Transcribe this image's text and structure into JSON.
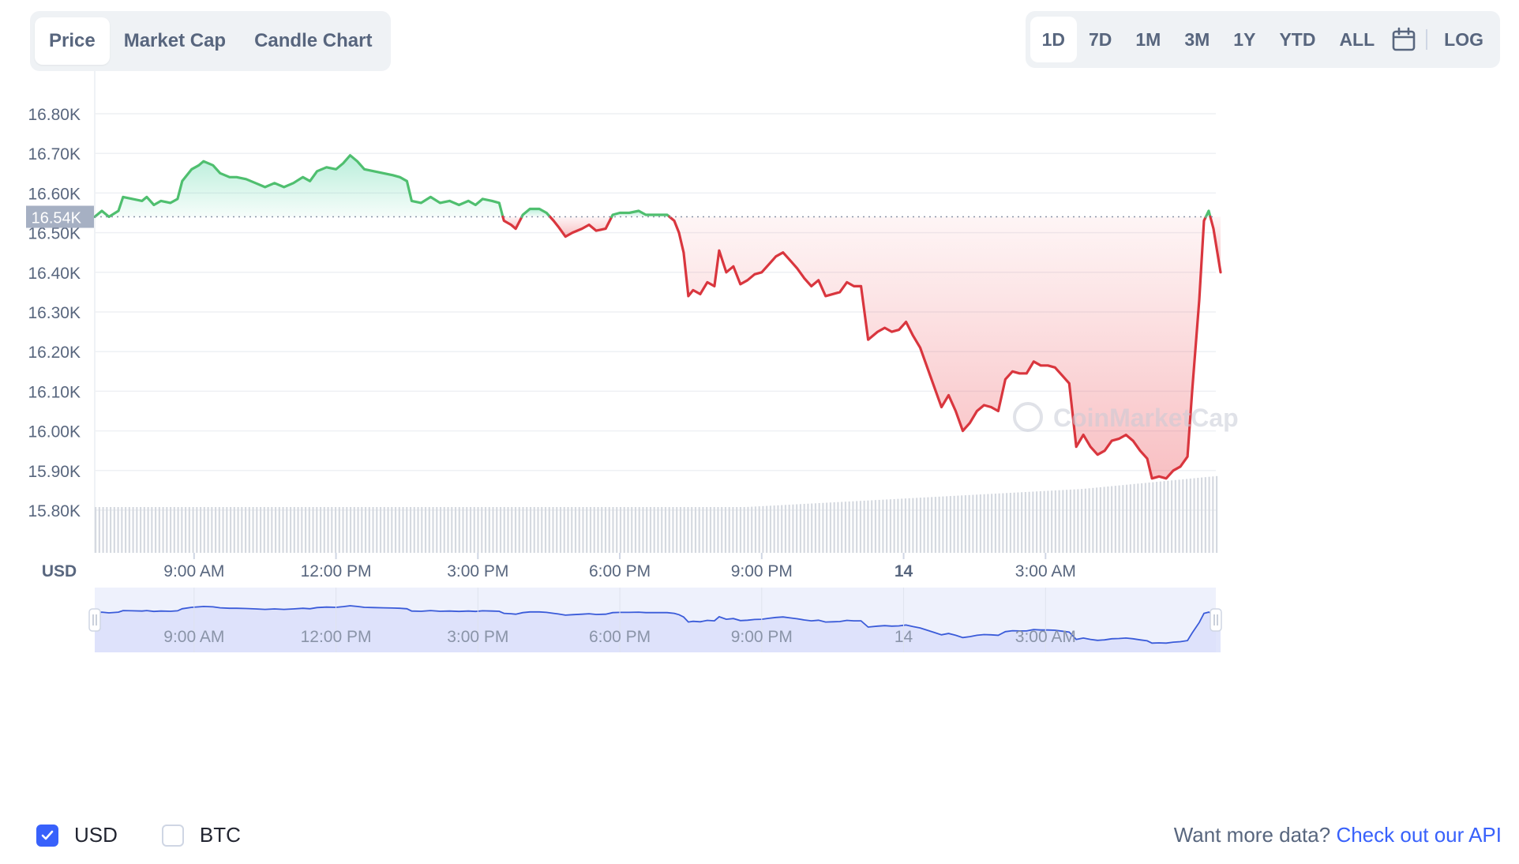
{
  "tabs": [
    {
      "label": "Price",
      "active": true
    },
    {
      "label": "Market Cap",
      "active": false
    },
    {
      "label": "Candle Chart",
      "active": false
    }
  ],
  "ranges": [
    {
      "label": "1D",
      "active": true
    },
    {
      "label": "7D",
      "active": false
    },
    {
      "label": "1M",
      "active": false
    },
    {
      "label": "3M",
      "active": false
    },
    {
      "label": "1Y",
      "active": false
    },
    {
      "label": "YTD",
      "active": false
    },
    {
      "label": "ALL",
      "active": false
    }
  ],
  "calendar_icon": "calendar-icon",
  "log_label": "LOG",
  "colors": {
    "up": "#16c784",
    "down": "#ea3943",
    "up_line": "#4fbf6f",
    "down_line": "#d9363e",
    "navigator": "#3a5bd9",
    "accent": "#3861fb"
  },
  "chart_data": {
    "type": "area",
    "currency_label": "USD",
    "reference_value": 16540,
    "reference_label": "16.54K",
    "ylim": [
      15800,
      16850
    ],
    "y_ticks": [
      {
        "value": 16800,
        "label": "16.80K"
      },
      {
        "value": 16700,
        "label": "16.70K"
      },
      {
        "value": 16600,
        "label": "16.60K"
      },
      {
        "value": 16500,
        "label": "16.50K"
      },
      {
        "value": 16400,
        "label": "16.40K"
      },
      {
        "value": 16300,
        "label": "16.30K"
      },
      {
        "value": 16200,
        "label": "16.20K"
      },
      {
        "value": 16100,
        "label": "16.10K"
      },
      {
        "value": 16000,
        "label": "16.00K"
      },
      {
        "value": 15900,
        "label": "15.90K"
      },
      {
        "value": 15800,
        "label": "15.80K"
      }
    ],
    "x_ticks": [
      {
        "hour": 9,
        "label": "9:00 AM",
        "bold": false
      },
      {
        "hour": 12,
        "label": "12:00 PM",
        "bold": false
      },
      {
        "hour": 15,
        "label": "3:00 PM",
        "bold": false
      },
      {
        "hour": 18,
        "label": "6:00 PM",
        "bold": false
      },
      {
        "hour": 21,
        "label": "9:00 PM",
        "bold": false
      },
      {
        "hour": 24,
        "label": "14",
        "bold": true
      },
      {
        "hour": 27,
        "label": "3:00 AM",
        "bold": false
      }
    ],
    "x_range_hours": [
      6.9,
      30.6
    ],
    "series": [
      {
        "points": [
          [
            6.9,
            16540
          ],
          [
            7.05,
            16555
          ],
          [
            7.2,
            16540
          ],
          [
            7.4,
            16555
          ],
          [
            7.5,
            16590
          ],
          [
            7.7,
            16585
          ],
          [
            7.9,
            16580
          ],
          [
            8.0,
            16590
          ],
          [
            8.15,
            16570
          ],
          [
            8.3,
            16580
          ],
          [
            8.5,
            16575
          ],
          [
            8.65,
            16585
          ],
          [
            8.75,
            16630
          ],
          [
            8.95,
            16660
          ],
          [
            9.1,
            16670
          ],
          [
            9.2,
            16680
          ],
          [
            9.4,
            16670
          ],
          [
            9.55,
            16650
          ],
          [
            9.75,
            16640
          ],
          [
            9.9,
            16640
          ],
          [
            10.1,
            16635
          ],
          [
            10.3,
            16625
          ],
          [
            10.5,
            16615
          ],
          [
            10.7,
            16625
          ],
          [
            10.9,
            16615
          ],
          [
            11.1,
            16625
          ],
          [
            11.3,
            16640
          ],
          [
            11.45,
            16630
          ],
          [
            11.6,
            16655
          ],
          [
            11.8,
            16665
          ],
          [
            12.0,
            16660
          ],
          [
            12.15,
            16675
          ],
          [
            12.3,
            16695
          ],
          [
            12.45,
            16680
          ],
          [
            12.6,
            16660
          ],
          [
            12.8,
            16655
          ],
          [
            13.0,
            16650
          ],
          [
            13.2,
            16645
          ],
          [
            13.35,
            16640
          ],
          [
            13.5,
            16630
          ],
          [
            13.6,
            16580
          ],
          [
            13.8,
            16575
          ],
          [
            14.0,
            16590
          ],
          [
            14.2,
            16575
          ],
          [
            14.4,
            16580
          ],
          [
            14.6,
            16570
          ],
          [
            14.8,
            16580
          ],
          [
            14.95,
            16570
          ],
          [
            15.1,
            16585
          ],
          [
            15.3,
            16580
          ],
          [
            15.45,
            16575
          ],
          [
            15.55,
            16530
          ],
          [
            15.7,
            16520
          ],
          [
            15.8,
            16510
          ],
          [
            15.95,
            16545
          ],
          [
            16.1,
            16560
          ],
          [
            16.3,
            16560
          ],
          [
            16.45,
            16550
          ],
          [
            16.6,
            16530
          ],
          [
            16.7,
            16515
          ],
          [
            16.85,
            16490
          ],
          [
            17.0,
            16500
          ],
          [
            17.2,
            16510
          ],
          [
            17.35,
            16520
          ],
          [
            17.5,
            16505
          ],
          [
            17.7,
            16510
          ],
          [
            17.85,
            16545
          ],
          [
            18.0,
            16550
          ],
          [
            18.2,
            16550
          ],
          [
            18.4,
            16555
          ],
          [
            18.55,
            16545
          ],
          [
            18.7,
            16545
          ],
          [
            18.85,
            16545
          ],
          [
            19.0,
            16545
          ],
          [
            19.15,
            16530
          ],
          [
            19.25,
            16500
          ],
          [
            19.35,
            16450
          ],
          [
            19.45,
            16340
          ],
          [
            19.55,
            16355
          ],
          [
            19.7,
            16345
          ],
          [
            19.85,
            16375
          ],
          [
            20.0,
            16365
          ],
          [
            20.1,
            16455
          ],
          [
            20.25,
            16400
          ],
          [
            20.4,
            16415
          ],
          [
            20.55,
            16370
          ],
          [
            20.7,
            16380
          ],
          [
            20.85,
            16395
          ],
          [
            21.0,
            16400
          ],
          [
            21.15,
            16420
          ],
          [
            21.3,
            16440
          ],
          [
            21.45,
            16450
          ],
          [
            21.6,
            16430
          ],
          [
            21.75,
            16410
          ],
          [
            21.9,
            16385
          ],
          [
            22.05,
            16365
          ],
          [
            22.2,
            16380
          ],
          [
            22.35,
            16340
          ],
          [
            22.5,
            16345
          ],
          [
            22.65,
            16350
          ],
          [
            22.8,
            16375
          ],
          [
            22.95,
            16365
          ],
          [
            23.1,
            16365
          ],
          [
            23.25,
            16230
          ],
          [
            23.45,
            16250
          ],
          [
            23.6,
            16260
          ],
          [
            23.75,
            16250
          ],
          [
            23.9,
            16255
          ],
          [
            24.05,
            16275
          ],
          [
            24.2,
            16240
          ],
          [
            24.35,
            16210
          ],
          [
            24.5,
            16160
          ],
          [
            24.65,
            16110
          ],
          [
            24.8,
            16060
          ],
          [
            24.95,
            16090
          ],
          [
            25.1,
            16050
          ],
          [
            25.25,
            16000
          ],
          [
            25.4,
            16020
          ],
          [
            25.55,
            16050
          ],
          [
            25.7,
            16065
          ],
          [
            25.85,
            16060
          ],
          [
            26.0,
            16050
          ],
          [
            26.15,
            16130
          ],
          [
            26.3,
            16150
          ],
          [
            26.45,
            16145
          ],
          [
            26.6,
            16145
          ],
          [
            26.75,
            16175
          ],
          [
            26.9,
            16165
          ],
          [
            27.05,
            16165
          ],
          [
            27.2,
            16160
          ],
          [
            27.35,
            16140
          ],
          [
            27.5,
            16120
          ],
          [
            27.65,
            15960
          ],
          [
            27.8,
            15990
          ],
          [
            27.95,
            15960
          ],
          [
            28.1,
            15940
          ],
          [
            28.25,
            15950
          ],
          [
            28.4,
            15975
          ],
          [
            28.55,
            15980
          ],
          [
            28.7,
            15990
          ],
          [
            28.85,
            15975
          ],
          [
            29.0,
            15950
          ],
          [
            29.15,
            15930
          ],
          [
            29.25,
            15880
          ],
          [
            29.4,
            15885
          ],
          [
            29.55,
            15880
          ],
          [
            29.7,
            15900
          ],
          [
            29.85,
            15910
          ],
          [
            30.0,
            15935
          ],
          [
            30.1,
            16100
          ],
          [
            30.25,
            16330
          ],
          [
            30.35,
            16530
          ],
          [
            30.45,
            16555
          ],
          [
            30.55,
            16510
          ],
          [
            30.7,
            16400
          ]
        ]
      }
    ],
    "navigator_labels": [
      "9:00 AM",
      "12:00 PM",
      "3:00 PM",
      "6:00 PM",
      "9:00 PM",
      "14",
      "3:00 AM"
    ],
    "watermark": "CoinMarketCap"
  },
  "legend": {
    "usd_label": "USD",
    "btc_label": "BTC",
    "usd_checked": true,
    "btc_checked": false
  },
  "api": {
    "prefix": "Want more data?",
    "link": "Check out our API"
  }
}
